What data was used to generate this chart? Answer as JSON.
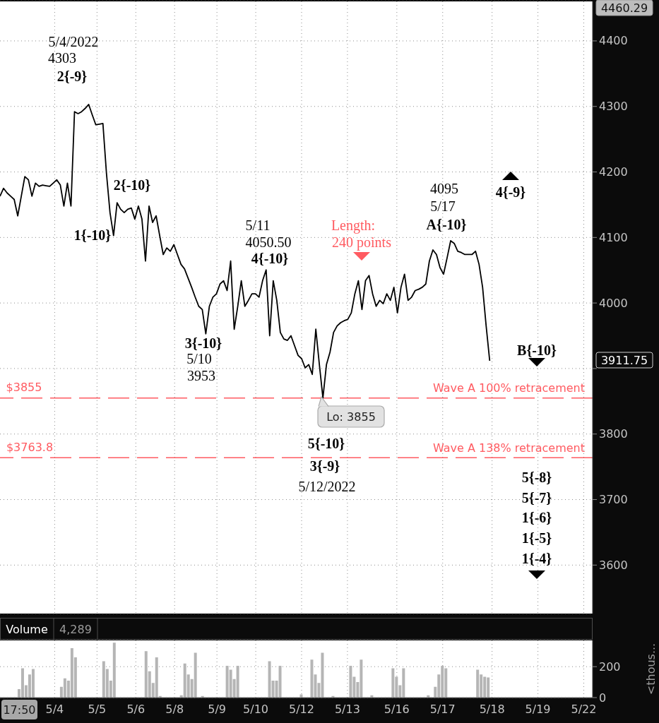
{
  "chart_data": [
    {
      "type": "line",
      "color": "#000000",
      "categories": [
        null,
        null,
        null,
        null,
        null,
        null,
        null,
        null,
        null,
        null,
        null,
        null,
        null,
        null,
        null,
        null,
        null,
        null,
        null,
        null,
        null,
        null,
        null,
        null,
        null,
        null,
        null,
        null,
        null,
        null,
        null,
        null,
        null,
        null,
        null,
        null,
        null,
        null,
        null,
        null,
        null,
        null,
        null,
        null,
        null,
        null,
        null,
        null,
        null,
        null,
        null,
        null,
        null,
        null,
        null,
        null,
        null,
        null,
        null,
        null,
        null,
        null,
        null,
        null,
        null,
        null,
        null,
        null,
        null,
        null,
        null,
        null,
        null,
        null,
        null,
        null,
        null,
        null,
        null,
        null,
        null,
        null,
        null,
        null,
        null,
        null,
        null,
        null,
        null,
        null,
        null,
        null,
        null,
        null,
        null,
        null,
        null,
        null,
        null,
        null,
        null,
        null,
        null,
        null,
        null,
        null,
        null,
        null,
        null,
        null,
        null,
        null,
        null,
        null,
        null,
        null,
        null,
        null,
        null,
        null,
        null,
        null,
        null,
        null,
        null,
        null,
        null,
        null,
        null,
        null,
        null,
        null,
        null,
        null,
        null,
        null,
        null,
        null,
        null,
        null,
        null,
        null,
        null,
        null,
        null,
        null,
        null,
        null,
        null,
        null,
        null,
        null,
        null,
        null,
        null,
        null,
        null,
        null,
        null,
        null,
        null,
        null,
        null,
        null,
        null,
        null,
        null,
        null
      ],
      "values": [
        4163,
        4175,
        4168,
        4163,
        4158,
        4133,
        4163,
        4193,
        4188,
        4163,
        4183,
        4178,
        4180,
        4179,
        4178,
        4183,
        4188,
        4180,
        4148,
        4183,
        4148,
        4292,
        4289,
        4292,
        4297,
        4303,
        4287,
        4272,
        4273,
        4274,
        4198,
        4138,
        4103,
        4153,
        4143,
        4138,
        4143,
        4145,
        4128,
        4148,
        4128,
        4064,
        4148,
        4123,
        4133,
        4103,
        4074,
        4084,
        4079,
        4089,
        4074,
        4059,
        4052,
        4038,
        4024,
        4009,
        3995,
        3990,
        3953,
        3995,
        4009,
        4014,
        4029,
        4034,
        4019,
        4064,
        3960,
        3995,
        4034,
        3995,
        4004,
        4014,
        4014,
        4009,
        4034,
        4050.5,
        3950,
        4034,
        4004,
        3955,
        3945,
        3943,
        3950,
        3935,
        3920,
        3915,
        3901,
        3906,
        3891,
        3960,
        3906,
        3855,
        3906,
        3925,
        3955,
        3965,
        3970,
        3973,
        3975,
        3985,
        4014,
        4034,
        3990,
        4034,
        4042,
        4014,
        3995,
        4004,
        3999,
        4014,
        4004,
        4024,
        3985,
        4024,
        4044,
        4004,
        4009,
        4019,
        4021,
        4024,
        4029,
        4064,
        4081,
        4074,
        4054,
        4044,
        4069,
        4095,
        4091,
        4079,
        4077,
        4074,
        4074,
        4074,
        4079,
        4059,
        4024,
        3965,
        3911.75,
        null,
        null,
        null,
        null,
        null,
        null,
        null,
        null,
        null,
        null,
        null,
        null,
        null,
        null,
        null,
        null,
        null,
        null,
        null,
        null,
        null,
        null,
        null,
        null,
        null,
        null,
        null,
        null,
        null
      ],
      "ylim": [
        3526,
        4460.29
      ],
      "yticks": [
        3600,
        3700,
        3800,
        {
          "value": 3900,
          "label": null
        },
        4000,
        4100,
        4200,
        4300,
        4400
      ],
      "tick_labels": "y",
      "grid": true,
      "ref_lines": [
        {
          "axis": "y",
          "value": 3855,
          "label": "Wave A 100% retracement",
          "color": "#ff5b61",
          "line_style": "dashed"
        },
        {
          "axis": "y",
          "value": 3763.8,
          "label": "Wave A 138% retracement",
          "color": "#ff5b61",
          "line_style": "dashed"
        }
      ],
      "annotations": [
        "5/4/2022",
        "4303",
        "2{-9}",
        "2{-10}",
        "1{-10}",
        "5/11",
        "4050.50",
        "4{-10}",
        "3{-10}",
        "5/10",
        "3953",
        "Length:",
        "240 points",
        "4095",
        "5/17",
        "A{-10}",
        "4{-9}",
        "B{-10}",
        "Lo: 3855",
        "5{-10}",
        "3{-9}",
        "5/12/2022",
        "5{-8}",
        "5{-7}",
        "1{-6}",
        "1{-5}",
        "1{-4}",
        "$3855",
        "$3763.8",
        "3911.75",
        "4460.29"
      ]
    },
    {
      "type": "bar",
      "title": "Volume",
      "color": "#b5b5b5",
      "categories": [
        null,
        null,
        null,
        null,
        null,
        null,
        null,
        null,
        null,
        null,
        null,
        null,
        null,
        null,
        null,
        "5/4",
        null,
        null,
        null,
        null,
        null,
        null,
        null,
        null,
        null,
        null,
        null,
        "5/5",
        null,
        null,
        null,
        null,
        null,
        null,
        null,
        null,
        null,
        null,
        "5/6",
        null,
        null,
        null,
        null,
        null,
        null,
        null,
        null,
        null,
        null,
        "5/8",
        null,
        null,
        null,
        null,
        null,
        null,
        null,
        null,
        null,
        null,
        null,
        "5/9",
        null,
        null,
        null,
        null,
        null,
        null,
        null,
        null,
        null,
        null,
        "5/10",
        null,
        null,
        null,
        null,
        null,
        null,
        null,
        null,
        null,
        null,
        null,
        null,
        "5/12",
        null,
        null,
        null,
        null,
        null,
        null,
        null,
        null,
        null,
        null,
        null,
        null,
        "5/13",
        null,
        null,
        null,
        null,
        null,
        null,
        null,
        null,
        null,
        null,
        null,
        null,
        null,
        "5/16",
        null,
        null,
        null,
        null,
        null,
        null,
        null,
        null,
        null,
        null,
        null,
        null,
        "5/17",
        null,
        null,
        null,
        null,
        null,
        null,
        null,
        null,
        null,
        null,
        null,
        null,
        null,
        "5/18",
        null,
        null,
        null,
        null,
        null,
        null,
        null,
        null,
        null,
        null,
        null,
        null,
        "5/19",
        null,
        null,
        null,
        null,
        null,
        null,
        null,
        null,
        null,
        null,
        null,
        null,
        "5/22",
        null,
        null
      ],
      "values": [
        null,
        null,
        null,
        null,
        null,
        55,
        190,
        80,
        150,
        185,
        null,
        null,
        null,
        null,
        null,
        null,
        null,
        70,
        125,
        110,
        320,
        260,
        null,
        null,
        null,
        null,
        null,
        null,
        null,
        235,
        185,
        110,
        355,
        null,
        null,
        null,
        null,
        null,
        null,
        null,
        null,
        300,
        170,
        95,
        260,
        10,
        null,
        null,
        null,
        null,
        null,
        15,
        220,
        150,
        120,
        290,
        null,
        10,
        null,
        null,
        null,
        null,
        null,
        null,
        205,
        180,
        120,
        205,
        null,
        null,
        null,
        null,
        null,
        null,
        null,
        null,
        235,
        110,
        110,
        205,
        null,
        null,
        null,
        null,
        null,
        20,
        null,
        null,
        245,
        150,
        95,
        290,
        null,
        null,
        10,
        null,
        null,
        null,
        null,
        205,
        135,
        100,
        245,
        null,
        null,
        15,
        null,
        null,
        null,
        null,
        null,
        190,
        135,
        80,
        190,
        null,
        null,
        null,
        null,
        null,
        null,
        15,
        null,
        70,
        150,
        205,
        190,
        null,
        null,
        null,
        null,
        null,
        null,
        null,
        null,
        180,
        150,
        135,
        130,
        null,
        null,
        null,
        null,
        null,
        null,
        null,
        null,
        null,
        null,
        null,
        null,
        null,
        null,
        null,
        null,
        null,
        null,
        null,
        null,
        null,
        null,
        null,
        null,
        null,
        null,
        null,
        null,
        null
      ],
      "ylim": [
        0,
        370
      ],
      "yticks": [
        0,
        200
      ],
      "ylabel": "<thous...",
      "grid": true,
      "annotations": [
        "4,289",
        "17:50"
      ]
    }
  ]
}
